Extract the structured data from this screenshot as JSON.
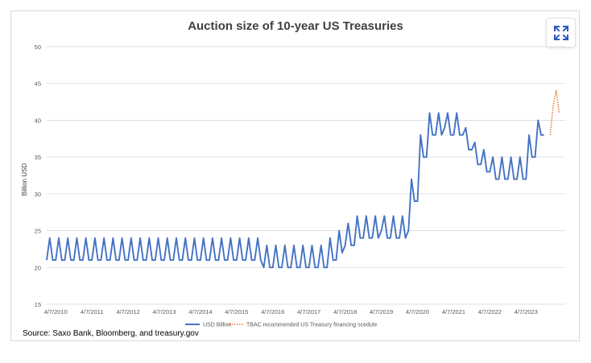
{
  "page": {
    "source": "Source: Saxo Bank, Bloomberg, and treasury.gov"
  },
  "colors": {
    "series": "#4472c4",
    "recommended": "#ed7d31",
    "grid": "#d9d9d9",
    "axis_text": "#595959"
  },
  "icons": {
    "expand": "expand-icon"
  },
  "chart_data": {
    "type": "line",
    "title": "Auction size of 10-year US Treasuries",
    "xlabel": "",
    "ylabel": "Billion USD",
    "ylim": [
      15,
      50
    ],
    "yticks": [
      15,
      20,
      25,
      30,
      35,
      40,
      45,
      50
    ],
    "xticks": [
      "4/7/2010",
      "4/7/2011",
      "4/7/2012",
      "4/7/2013",
      "4/7/2014",
      "4/7/2015",
      "4/7/2016",
      "4/7/2017",
      "4/7/2018",
      "4/7/2019",
      "4/7/2020",
      "4/7/2021",
      "4/7/2022",
      "4/7/2023"
    ],
    "grid": "horizontal",
    "legend": "bottom",
    "x_start": "2010-01",
    "x_step": "month",
    "series": [
      {
        "name": "USD Billion",
        "style": "solid",
        "values": [
          21,
          24,
          21,
          21,
          24,
          21,
          21,
          24,
          21,
          21,
          24,
          21,
          21,
          24,
          21,
          21,
          24,
          21,
          21,
          24,
          21,
          21,
          24,
          21,
          21,
          24,
          21,
          21,
          24,
          21,
          21,
          24,
          21,
          21,
          24,
          21,
          21,
          24,
          21,
          21,
          24,
          21,
          21,
          24,
          21,
          21,
          24,
          21,
          21,
          24,
          21,
          21,
          24,
          21,
          21,
          24,
          21,
          21,
          24,
          21,
          21,
          24,
          21,
          21,
          24,
          21,
          21,
          24,
          21,
          21,
          24,
          21,
          20,
          23,
          20,
          20,
          23,
          20,
          20,
          23,
          20,
          20,
          23,
          20,
          20,
          23,
          20,
          20,
          23,
          20,
          20,
          23,
          20,
          20,
          24,
          21,
          21,
          25,
          22,
          23,
          26,
          23,
          23,
          27,
          24,
          24,
          27,
          24,
          24,
          27,
          24,
          25,
          27,
          24,
          24,
          27,
          24,
          24,
          27,
          24,
          25,
          32,
          29,
          29,
          38,
          35,
          35,
          41,
          38,
          38,
          41,
          38,
          39,
          41,
          38,
          38,
          41,
          38,
          38,
          39,
          36,
          36,
          37,
          34,
          34,
          36,
          33,
          33,
          35,
          32,
          32,
          35,
          32,
          32,
          35,
          32,
          32,
          35,
          32,
          32,
          38,
          35,
          35,
          40,
          38,
          38
        ]
      },
      {
        "name": "TBAC recommended US Treasury financing scedule",
        "style": "dotted",
        "start_index": 167,
        "values": [
          38,
          42,
          44,
          41
        ]
      }
    ]
  }
}
